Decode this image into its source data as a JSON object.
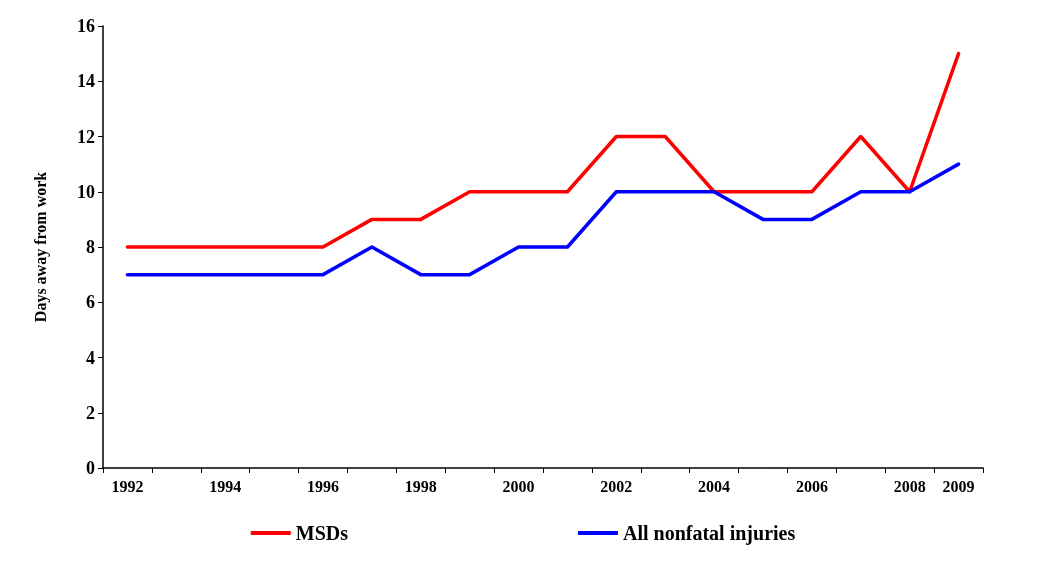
{
  "chart_data": {
    "type": "line",
    "ylabel": "Days away from work",
    "categories": [
      "1992",
      null,
      "1994",
      null,
      "1996",
      null,
      "1998",
      null,
      "2000",
      null,
      "2002",
      null,
      "2004",
      null,
      "2006",
      null,
      "2008",
      "2009"
    ],
    "series": [
      {
        "name": "MSDs",
        "color": "#ff0000",
        "values": [
          8,
          8,
          8,
          8,
          8,
          9,
          9,
          10,
          10,
          10,
          12,
          12,
          10,
          10,
          10,
          12,
          10,
          15
        ]
      },
      {
        "name": "All nonfatal injuries",
        "color": "#0000ff",
        "values": [
          7,
          7,
          7,
          7,
          7,
          8,
          7,
          7,
          8,
          8,
          10,
          10,
          10,
          9,
          9,
          10,
          10,
          11
        ]
      }
    ],
    "ylim": [
      0,
      16
    ],
    "yticks": [
      0,
      2,
      4,
      6,
      8,
      10,
      12,
      14,
      16
    ],
    "grid": false,
    "legend": "bottom",
    "marker": "none",
    "line_style": "solid"
  }
}
